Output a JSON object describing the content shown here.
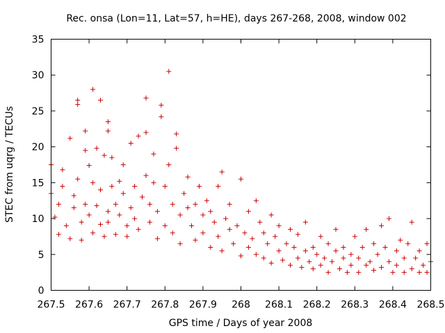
{
  "chart_data": {
    "type": "scatter",
    "title": "Rec. onsa (Lon=11, Lat=57, h=HE), days 267-268, 2008, window 002",
    "xlabel": "GPS time / Days of year 2008",
    "ylabel": "STEC from uqrg / TECUs",
    "xlim": [
      267.5,
      268.5
    ],
    "ylim": [
      0,
      35
    ],
    "xticks": [
      267.5,
      267.6,
      267.7,
      267.8,
      267.9,
      268.0,
      268.1,
      268.2,
      268.3,
      268.4,
      268.5
    ],
    "xtick_labels": [
      "267.5",
      "267.6",
      "267.7",
      "267.8",
      "267.9",
      "268",
      "268.1",
      "268.2",
      "268.3",
      "268.4",
      "268.5"
    ],
    "yticks": [
      0,
      5,
      10,
      15,
      20,
      25,
      30,
      35
    ],
    "ytick_labels": [
      "0",
      "5",
      "10",
      "15",
      "20",
      "25",
      "30",
      "35"
    ],
    "marker": "plus",
    "color": "#cc0000",
    "grid": false,
    "series": [
      {
        "name": "STEC",
        "points": [
          [
            267.5,
            17.5
          ],
          [
            267.5,
            13.5
          ],
          [
            267.51,
            10.2
          ],
          [
            267.52,
            7.8
          ],
          [
            267.52,
            12.0
          ],
          [
            267.53,
            14.5
          ],
          [
            267.53,
            16.8
          ],
          [
            267.54,
            9.0
          ],
          [
            267.55,
            21.2
          ],
          [
            267.55,
            7.2
          ],
          [
            267.56,
            11.5
          ],
          [
            267.56,
            13.2
          ],
          [
            267.57,
            26.5
          ],
          [
            267.57,
            25.9
          ],
          [
            267.57,
            15.5
          ],
          [
            267.58,
            9.5
          ],
          [
            267.58,
            7.0
          ],
          [
            267.59,
            19.5
          ],
          [
            267.59,
            22.2
          ],
          [
            267.59,
            12.0
          ],
          [
            267.6,
            17.4
          ],
          [
            267.6,
            10.5
          ],
          [
            267.61,
            28.0
          ],
          [
            267.61,
            15.0
          ],
          [
            267.61,
            8.0
          ],
          [
            267.62,
            19.8
          ],
          [
            267.62,
            11.8
          ],
          [
            267.63,
            26.5
          ],
          [
            267.63,
            9.2
          ],
          [
            267.63,
            14.0
          ],
          [
            267.64,
            7.5
          ],
          [
            267.64,
            18.8
          ],
          [
            267.65,
            23.5
          ],
          [
            267.65,
            22.2
          ],
          [
            267.65,
            11.0
          ],
          [
            267.65,
            9.5
          ],
          [
            267.66,
            18.5
          ],
          [
            267.66,
            14.5
          ],
          [
            267.67,
            12.0
          ],
          [
            267.67,
            7.8
          ],
          [
            267.68,
            15.2
          ],
          [
            267.68,
            10.5
          ],
          [
            267.69,
            17.5
          ],
          [
            267.69,
            13.5
          ],
          [
            267.7,
            9.0
          ],
          [
            267.7,
            7.5
          ],
          [
            267.71,
            11.5
          ],
          [
            267.71,
            20.5
          ],
          [
            267.72,
            14.5
          ],
          [
            267.72,
            10.0
          ],
          [
            267.73,
            21.5
          ],
          [
            267.73,
            8.5
          ],
          [
            267.74,
            13.0
          ],
          [
            267.75,
            22.0
          ],
          [
            267.75,
            16.0
          ],
          [
            267.75,
            26.8
          ],
          [
            267.76,
            12.0
          ],
          [
            267.76,
            9.5
          ],
          [
            267.77,
            19.0
          ],
          [
            267.77,
            15.0
          ],
          [
            267.78,
            7.2
          ],
          [
            267.78,
            11.0
          ],
          [
            267.79,
            24.2
          ],
          [
            267.79,
            25.8
          ],
          [
            267.8,
            14.5
          ],
          [
            267.8,
            9.0
          ],
          [
            267.81,
            17.5
          ],
          [
            267.81,
            30.5
          ],
          [
            267.82,
            12.0
          ],
          [
            267.82,
            8.0
          ],
          [
            267.83,
            21.8
          ],
          [
            267.83,
            19.8
          ],
          [
            267.84,
            10.5
          ],
          [
            267.84,
            6.5
          ],
          [
            267.85,
            13.5
          ],
          [
            267.86,
            11.5
          ],
          [
            267.86,
            15.8
          ],
          [
            267.87,
            9.0
          ],
          [
            267.88,
            12.0
          ],
          [
            267.88,
            7.0
          ],
          [
            267.89,
            14.5
          ],
          [
            267.9,
            10.5
          ],
          [
            267.9,
            8.0
          ],
          [
            267.91,
            12.5
          ],
          [
            267.92,
            6.0
          ],
          [
            267.92,
            11.0
          ],
          [
            267.93,
            9.5
          ],
          [
            267.94,
            14.5
          ],
          [
            267.94,
            7.5
          ],
          [
            267.95,
            16.5
          ],
          [
            267.95,
            5.5
          ],
          [
            267.96,
            10.0
          ],
          [
            267.97,
            8.5
          ],
          [
            267.97,
            12.0
          ],
          [
            267.98,
            6.5
          ],
          [
            267.99,
            9.0
          ],
          [
            268.0,
            15.5
          ],
          [
            268.0,
            4.8
          ],
          [
            268.01,
            8.0
          ],
          [
            268.02,
            11.0
          ],
          [
            268.02,
            6.0
          ],
          [
            268.03,
            7.2
          ],
          [
            268.04,
            12.5
          ],
          [
            268.04,
            5.0
          ],
          [
            268.05,
            9.5
          ],
          [
            268.06,
            4.5
          ],
          [
            268.06,
            8.0
          ],
          [
            268.07,
            6.5
          ],
          [
            268.08,
            10.5
          ],
          [
            268.08,
            3.8
          ],
          [
            268.09,
            7.5
          ],
          [
            268.1,
            5.5
          ],
          [
            268.1,
            9.0
          ],
          [
            268.11,
            4.2
          ],
          [
            268.12,
            6.5
          ],
          [
            268.13,
            8.5
          ],
          [
            268.13,
            3.5
          ],
          [
            268.14,
            6.0
          ],
          [
            268.15,
            4.5
          ],
          [
            268.15,
            7.8
          ],
          [
            268.16,
            3.2
          ],
          [
            268.17,
            5.5
          ],
          [
            268.17,
            9.5
          ],
          [
            268.18,
            4.0
          ],
          [
            268.19,
            6.0
          ],
          [
            268.19,
            3.0
          ],
          [
            268.2,
            5.0
          ],
          [
            268.21,
            7.5
          ],
          [
            268.21,
            3.5
          ],
          [
            268.22,
            4.5
          ],
          [
            268.23,
            6.5
          ],
          [
            268.23,
            2.5
          ],
          [
            268.24,
            4.0
          ],
          [
            268.25,
            5.5
          ],
          [
            268.25,
            8.5
          ],
          [
            268.26,
            3.0
          ],
          [
            268.27,
            4.5
          ],
          [
            268.27,
            6.0
          ],
          [
            268.28,
            2.5
          ],
          [
            268.29,
            5.0
          ],
          [
            268.29,
            3.5
          ],
          [
            268.3,
            7.5
          ],
          [
            268.31,
            4.5
          ],
          [
            268.31,
            2.5
          ],
          [
            268.32,
            6.0
          ],
          [
            268.33,
            3.5
          ],
          [
            268.33,
            8.5
          ],
          [
            268.34,
            4.0
          ],
          [
            268.35,
            6.5
          ],
          [
            268.35,
            2.8
          ],
          [
            268.36,
            5.0
          ],
          [
            268.37,
            3.2
          ],
          [
            268.37,
            9.0
          ],
          [
            268.38,
            6.0
          ],
          [
            268.39,
            4.0
          ],
          [
            268.39,
            10.0
          ],
          [
            268.4,
            2.5
          ],
          [
            268.41,
            5.5
          ],
          [
            268.41,
            3.5
          ],
          [
            268.42,
            7.0
          ],
          [
            268.43,
            2.5
          ],
          [
            268.43,
            4.5
          ],
          [
            268.44,
            6.5
          ],
          [
            268.45,
            3.0
          ],
          [
            268.45,
            9.5
          ],
          [
            268.46,
            4.5
          ],
          [
            268.47,
            2.5
          ],
          [
            268.47,
            5.5
          ],
          [
            268.48,
            3.5
          ],
          [
            268.49,
            6.5
          ],
          [
            268.49,
            2.5
          ],
          [
            268.5,
            4.0
          ]
        ]
      }
    ]
  }
}
